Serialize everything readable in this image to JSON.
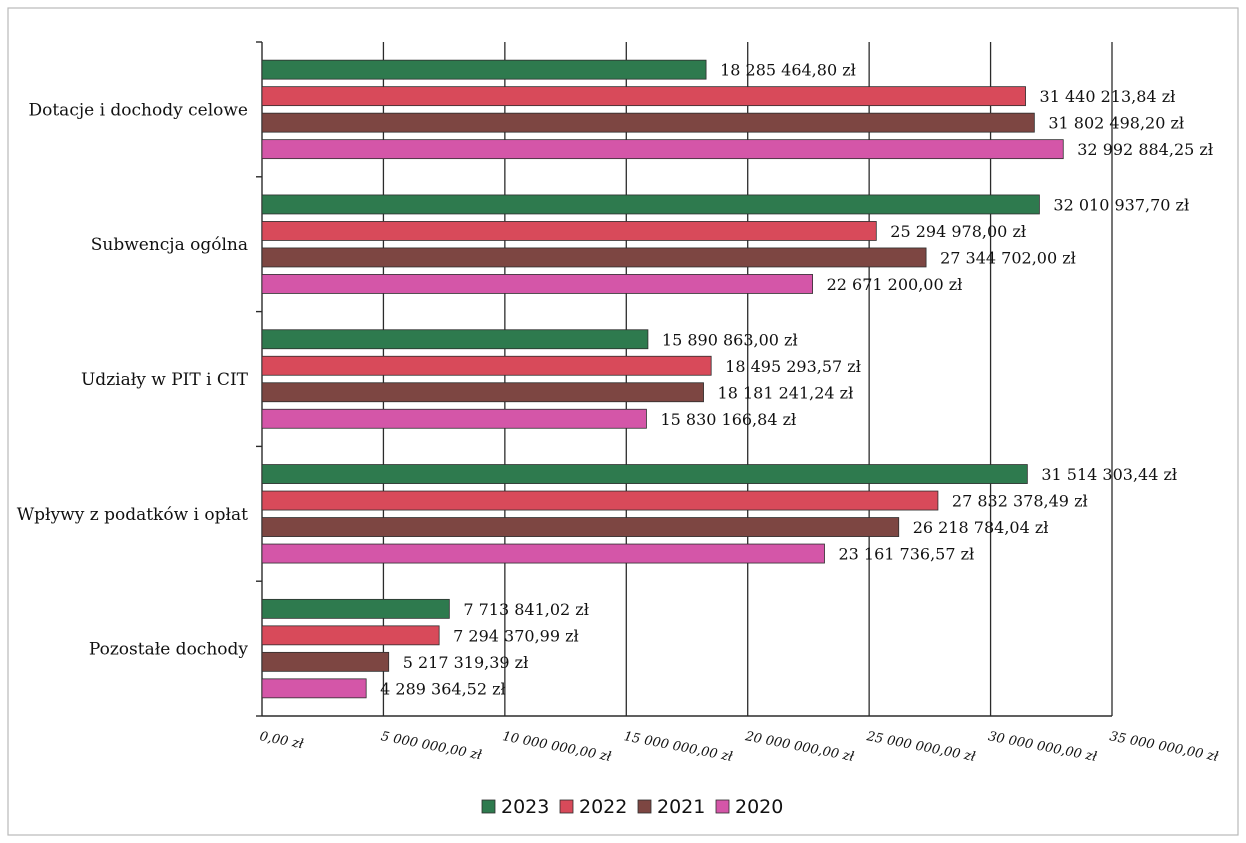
{
  "chart_data": {
    "type": "bar",
    "orientation": "horizontal",
    "categories": [
      "Dotacje i dochody celowe",
      "Subwencja ogólna",
      "Udziały w PIT i CIT",
      "Wpływy z podatków i opłat",
      "Pozostałe dochody"
    ],
    "series": [
      {
        "name": "2023",
        "color": "#2e7a4e",
        "values": [
          18285464.8,
          32010937.7,
          15890863.0,
          31514303.44,
          7713841.02
        ],
        "labels": [
          "18 285 464,80 zł",
          "32 010 937,70 zł",
          "15 890 863,00 zł",
          "31 514 303,44 zł",
          "7 713 841,02 zł"
        ]
      },
      {
        "name": "2022",
        "color": "#d84a5a",
        "values": [
          31440213.84,
          25294978.0,
          18495293.57,
          27832378.49,
          7294370.99
        ],
        "labels": [
          "31 440 213,84 zł",
          "25 294 978,00 zł",
          "18 495 293,57 zł",
          "27 832 378,49 zł",
          "7 294 370,99 zł"
        ]
      },
      {
        "name": "2021",
        "color": "#7d4642",
        "values": [
          31802498.2,
          27344702.0,
          18181241.24,
          26218784.04,
          5217319.39
        ],
        "labels": [
          "31 802 498,20 zł",
          "27 344 702,00 zł",
          "18 181 241,24 zł",
          "26 218 784,04 zł",
          "5 217 319,39 zł"
        ]
      },
      {
        "name": "2020",
        "color": "#d456a8",
        "values": [
          32992884.25,
          22671200.0,
          15830166.84,
          23161736.57,
          4289364.52
        ],
        "labels": [
          "32 992 884,25 zł",
          "22 671 200,00 zł",
          "15 830 166,84 zł",
          "23 161 736,57 zł",
          "4 289 364,52 zł"
        ]
      }
    ],
    "xlim": [
      0,
      35000000
    ],
    "xticks": [
      0,
      5000000,
      10000000,
      15000000,
      20000000,
      25000000,
      30000000,
      35000000
    ],
    "xtick_labels": [
      "0,00 zł",
      "5 000 000,00 zł",
      "10 000 000,00 zł",
      "15 000 000,00 zł",
      "20 000 000,00 zł",
      "25 000 000,00 zł",
      "30 000 000,00 zł",
      "35 000 000,00 zł"
    ],
    "title": "",
    "xlabel": "",
    "ylabel": "",
    "grid": true,
    "legend": "bottom"
  }
}
